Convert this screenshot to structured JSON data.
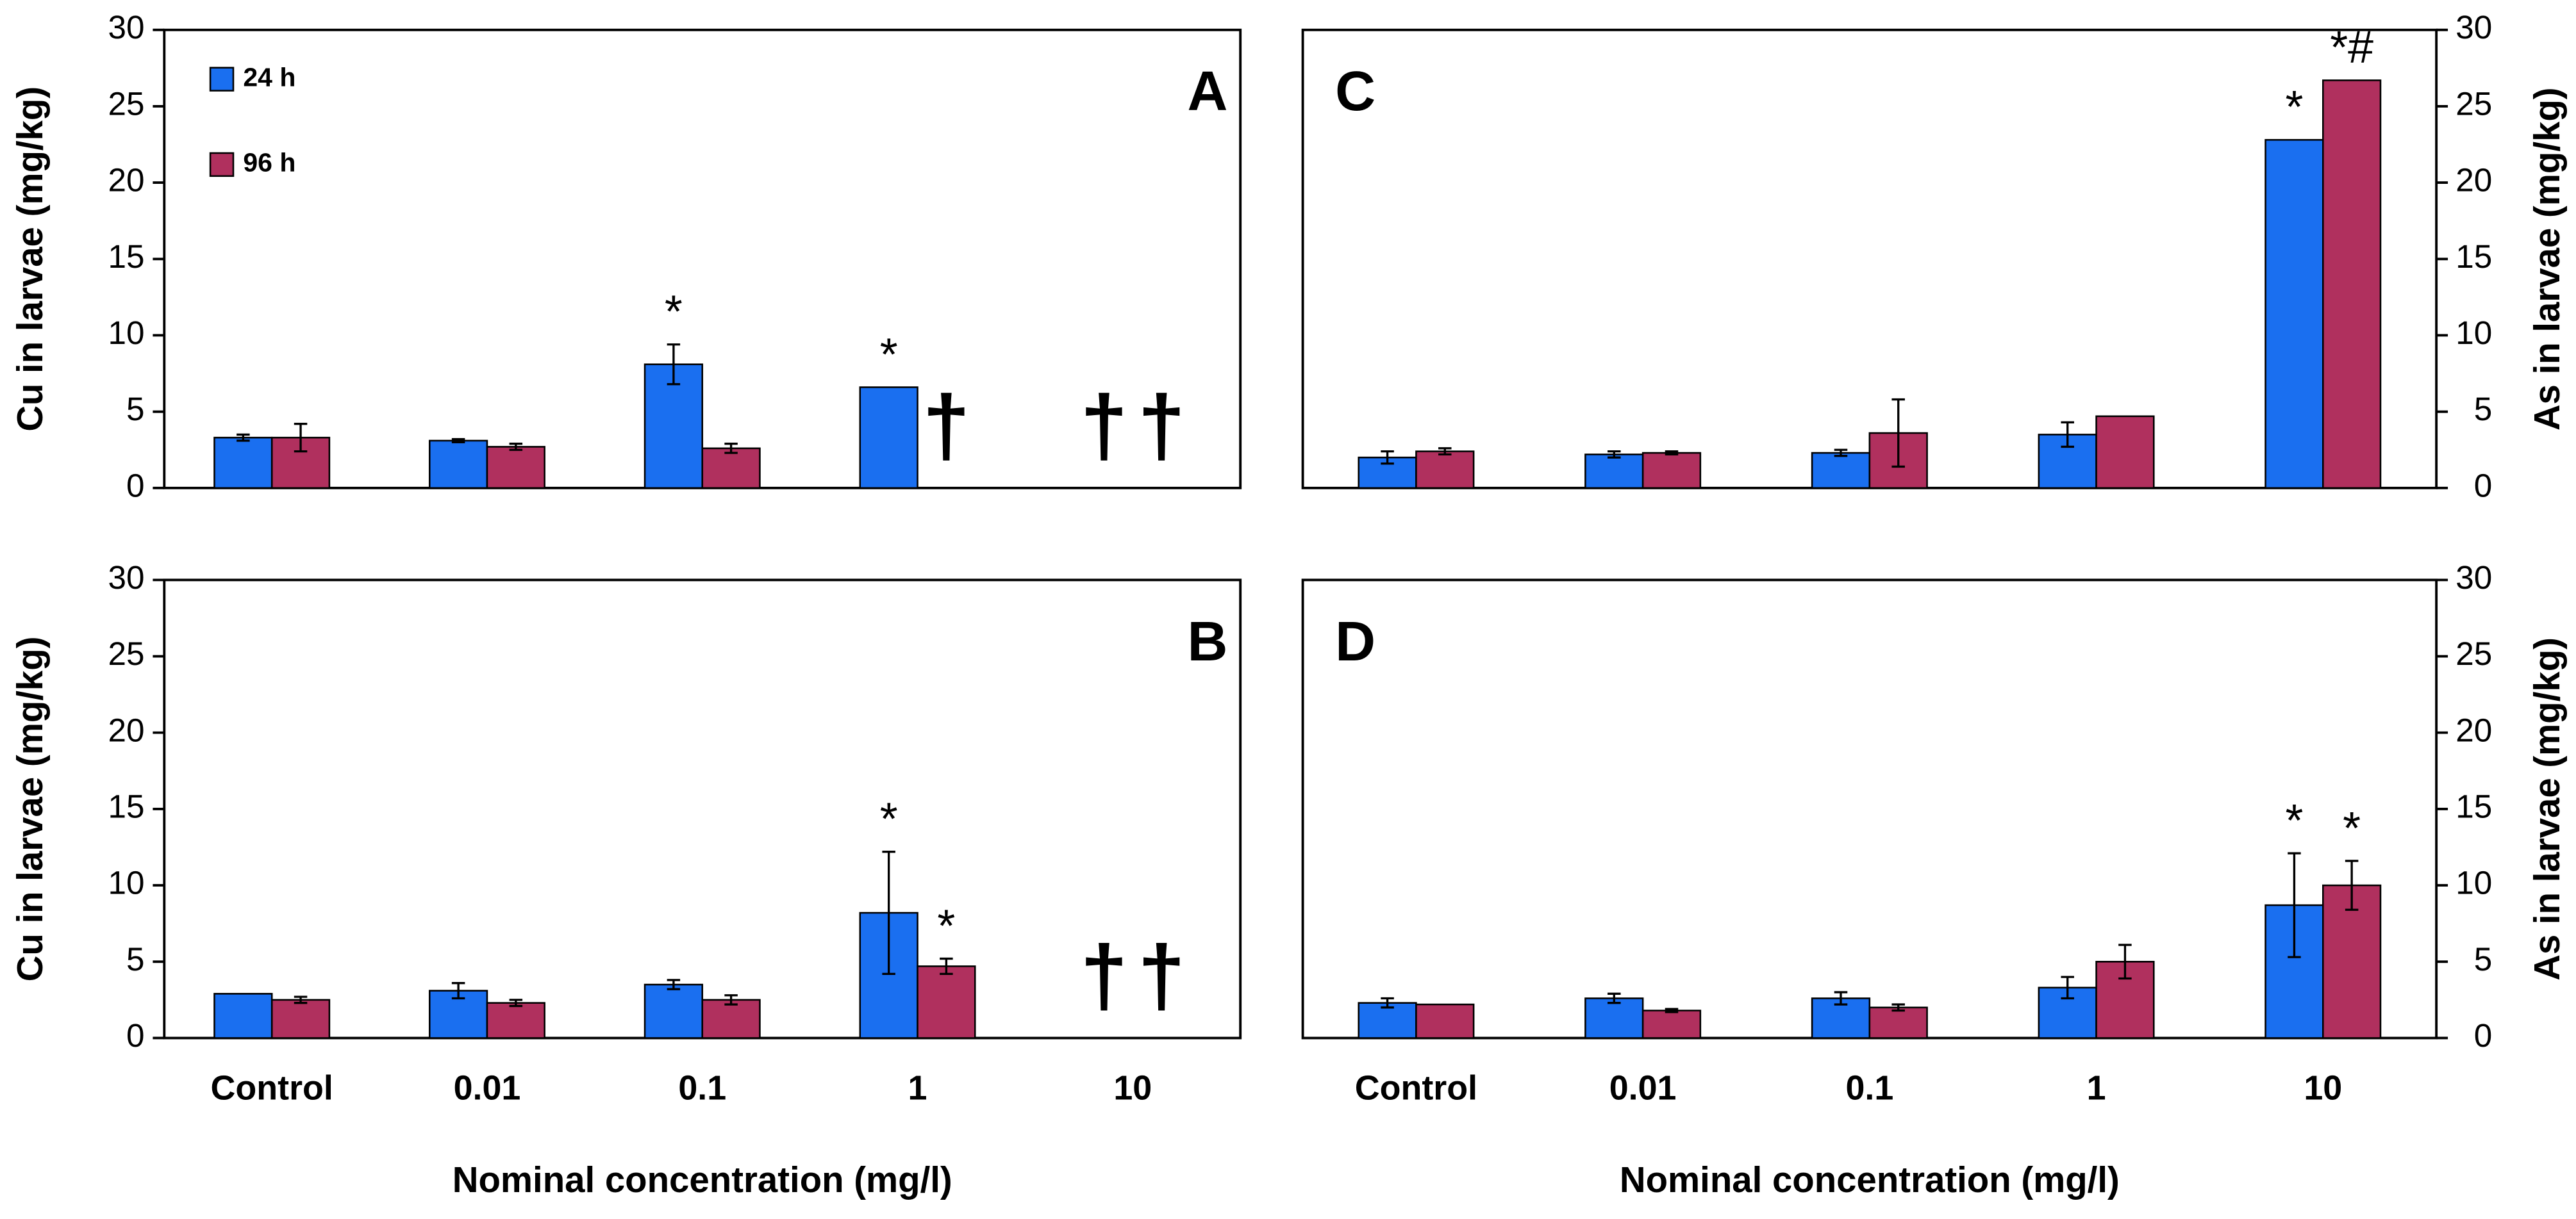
{
  "chart_data": [
    {
      "type": "bar",
      "panel_label": "A",
      "ylabel": "Cu in larvae (mg/kg)",
      "y_axis_side": "left",
      "ylim": [
        0,
        30
      ],
      "yticks": [
        0,
        5,
        10,
        15,
        20,
        25,
        30
      ],
      "legend": "upper left",
      "series": [
        {
          "name": "24 h",
          "color": "#1a6ff0",
          "values": [
            3.3,
            3.1,
            8.1,
            6.6,
            null
          ],
          "errors": [
            0.2,
            0.1,
            1.3,
            null,
            null
          ],
          "annotations": [
            null,
            null,
            "*",
            "*",
            "†"
          ]
        },
        {
          "name": "96 h",
          "color": "#b0305e",
          "values": [
            3.3,
            2.7,
            2.6,
            null,
            null
          ],
          "errors": [
            0.9,
            0.2,
            0.3,
            null,
            null
          ],
          "annotations": [
            null,
            null,
            null,
            "†",
            "†"
          ]
        }
      ]
    },
    {
      "type": "bar",
      "panel_label": "B",
      "ylabel": "Cu in larvae (mg/kg)",
      "y_axis_side": "left",
      "xlabel": "Nominal concentration (mg/l)",
      "categories": [
        "Control",
        "0.01",
        "0.1",
        "1",
        "10"
      ],
      "ylim": [
        0,
        30
      ],
      "yticks": [
        0,
        5,
        10,
        15,
        20,
        25,
        30
      ],
      "series": [
        {
          "color": "#1a6ff0",
          "values": [
            2.9,
            3.1,
            3.5,
            8.2,
            null
          ],
          "errors": [
            null,
            0.5,
            0.3,
            4.0,
            null
          ],
          "annotations": [
            null,
            null,
            null,
            "*",
            "†"
          ]
        },
        {
          "color": "#b0305e",
          "values": [
            2.5,
            2.3,
            2.5,
            4.7,
            null
          ],
          "errors": [
            0.2,
            0.2,
            0.3,
            0.5,
            null
          ],
          "annotations": [
            null,
            null,
            null,
            "*",
            "†"
          ]
        }
      ]
    },
    {
      "type": "bar",
      "panel_label": "C",
      "ylabel": "As in larvae (mg/kg)",
      "y_axis_side": "right",
      "ylim": [
        0,
        30
      ],
      "yticks": [
        0,
        5,
        10,
        15,
        20,
        25,
        30
      ],
      "series": [
        {
          "color": "#1a6ff0",
          "values": [
            2.0,
            2.2,
            2.3,
            3.5,
            22.8
          ],
          "errors": [
            0.4,
            0.2,
            0.2,
            0.8,
            null
          ],
          "annotations": [
            null,
            null,
            null,
            null,
            "*"
          ]
        },
        {
          "color": "#b0305e",
          "values": [
            2.4,
            2.3,
            3.6,
            4.7,
            26.7
          ],
          "errors": [
            0.2,
            0.1,
            2.2,
            null,
            null
          ],
          "annotations": [
            null,
            null,
            null,
            null,
            "*#"
          ]
        }
      ]
    },
    {
      "type": "bar",
      "panel_label": "D",
      "ylabel": "As in larvae (mg/kg)",
      "y_axis_side": "right",
      "xlabel": "Nominal concentration (mg/l)",
      "categories": [
        "Control",
        "0.01",
        "0.1",
        "1",
        "10"
      ],
      "ylim": [
        0,
        30
      ],
      "yticks": [
        0,
        5,
        10,
        15,
        20,
        25,
        30
      ],
      "series": [
        {
          "color": "#1a6ff0",
          "values": [
            2.3,
            2.6,
            2.6,
            3.3,
            8.7
          ],
          "errors": [
            0.3,
            0.3,
            0.4,
            0.7,
            3.4
          ],
          "annotations": [
            null,
            null,
            null,
            null,
            "*"
          ]
        },
        {
          "color": "#b0305e",
          "values": [
            2.2,
            1.8,
            2.0,
            5.0,
            10.0
          ],
          "errors": [
            null,
            0.1,
            0.2,
            1.1,
            1.6
          ],
          "annotations": [
            null,
            null,
            null,
            null,
            "*"
          ]
        }
      ]
    }
  ]
}
